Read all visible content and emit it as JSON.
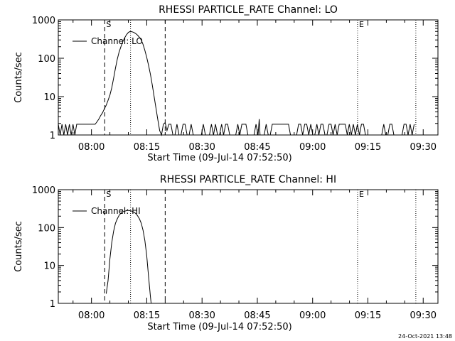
{
  "footer_stamp": "24-Oct-2021 13:48",
  "chart_data": [
    {
      "type": "line",
      "title": "RHESSI PARTICLE_RATE Channel: LO",
      "xlabel": "Start Time (09-Jul-14 07:52:50)",
      "ylabel": "Counts/sec",
      "yscale": "log",
      "ylim": [
        1,
        1000
      ],
      "y_ticks": [
        {
          "value": 1,
          "label": "1"
        },
        {
          "value": 10,
          "label": "10"
        },
        {
          "value": 100,
          "label": "100"
        },
        {
          "value": 1000,
          "label": "1000"
        }
      ],
      "x_ticks": [
        "08:00",
        "08:15",
        "08:30",
        "08:45",
        "09:00",
        "09:15",
        "09:30"
      ],
      "x_ticks_min": [
        7,
        22,
        37,
        52,
        67,
        82,
        97
      ],
      "xlim_min": [
        -2,
        101
      ],
      "legend": {
        "label": "Channel: LO",
        "position": "top-left"
      },
      "markers": [
        {
          "x_min": 10.6,
          "style": "dashed",
          "label": "S"
        },
        {
          "x_min": 17.6,
          "style": "dotted",
          "label": ""
        },
        {
          "x_min": 27.0,
          "style": "dashed",
          "label": ""
        },
        {
          "x_min": 79.2,
          "style": "dotted",
          "label": "E"
        },
        {
          "x_min": 95.0,
          "style": "dotted",
          "label": ""
        }
      ],
      "series": [
        {
          "name": "Channel: LO",
          "noise_range_min": [
            28,
            95
          ],
          "noise_low": 1.0,
          "noise_high": 1.9,
          "points": [
            [
              -2,
              1.9
            ],
            [
              -1.5,
              1.0
            ],
            [
              -1,
              1.9
            ],
            [
              -0.5,
              1.0
            ],
            [
              0,
              1.9
            ],
            [
              0.5,
              1.0
            ],
            [
              1,
              1.9
            ],
            [
              1.5,
              1.0
            ],
            [
              2,
              1.9
            ],
            [
              2.5,
              1.0
            ],
            [
              3,
              1.9
            ],
            [
              3.5,
              1.9
            ],
            [
              6,
              1.9
            ],
            [
              7,
              1.9
            ],
            [
              8,
              1.9
            ],
            [
              8.5,
              2.2
            ],
            [
              9,
              2.6
            ],
            [
              9.5,
              3.2
            ],
            [
              10,
              3.8
            ],
            [
              10.5,
              4.8
            ],
            [
              11,
              6
            ],
            [
              11.5,
              8
            ],
            [
              12,
              11
            ],
            [
              12.5,
              17
            ],
            [
              13,
              30
            ],
            [
              13.5,
              55
            ],
            [
              14,
              95
            ],
            [
              14.5,
              145
            ],
            [
              15,
              200
            ],
            [
              15.5,
              270
            ],
            [
              16,
              340
            ],
            [
              16.5,
              410
            ],
            [
              17,
              470
            ],
            [
              17.5,
              500
            ],
            [
              18,
              490
            ],
            [
              18.5,
              470
            ],
            [
              19,
              440
            ],
            [
              19.5,
              400
            ],
            [
              20,
              350
            ],
            [
              20.5,
              300
            ],
            [
              21,
              230
            ],
            [
              21.5,
              160
            ],
            [
              22,
              105
            ],
            [
              22.5,
              65
            ],
            [
              23,
              38
            ],
            [
              23.5,
              20
            ],
            [
              24,
              10
            ],
            [
              24.5,
              5
            ],
            [
              25,
              2.5
            ],
            [
              25.5,
              1.3
            ],
            [
              26,
              1.0
            ],
            [
              26.5,
              1.9
            ],
            [
              27,
              2.1
            ],
            [
              27.5,
              1.3
            ]
          ],
          "spikes": [
            [
              52.5,
              2.6
            ]
          ]
        }
      ]
    },
    {
      "type": "line",
      "title": "RHESSI PARTICLE_RATE Channel: HI",
      "xlabel": "Start Time (09-Jul-14 07:52:50)",
      "ylabel": "Counts/sec",
      "yscale": "log",
      "ylim": [
        1,
        1000
      ],
      "y_ticks": [
        {
          "value": 1,
          "label": "1"
        },
        {
          "value": 10,
          "label": "10"
        },
        {
          "value": 100,
          "label": "100"
        },
        {
          "value": 1000,
          "label": "1000"
        }
      ],
      "x_ticks": [
        "08:00",
        "08:15",
        "08:30",
        "08:45",
        "09:00",
        "09:15",
        "09:30"
      ],
      "x_ticks_min": [
        7,
        22,
        37,
        52,
        67,
        82,
        97
      ],
      "xlim_min": [
        -2,
        101
      ],
      "legend": {
        "label": "Channel: HI",
        "position": "top-left"
      },
      "markers": [
        {
          "x_min": 10.6,
          "style": "dashed",
          "label": "S"
        },
        {
          "x_min": 17.6,
          "style": "dotted",
          "label": ""
        },
        {
          "x_min": 27.0,
          "style": "dashed",
          "label": ""
        },
        {
          "x_min": 79.2,
          "style": "dotted",
          "label": "E"
        },
        {
          "x_min": 95.0,
          "style": "dotted",
          "label": ""
        }
      ],
      "series": [
        {
          "name": "Channel: HI",
          "points": [
            [
              11.0,
              1.8
            ],
            [
              11.5,
              4
            ],
            [
              12,
              15
            ],
            [
              12.5,
              40
            ],
            [
              13,
              80
            ],
            [
              13.5,
              130
            ],
            [
              14,
              170
            ],
            [
              14.5,
              210
            ],
            [
              15,
              240
            ],
            [
              15.5,
              260
            ],
            [
              16,
              270
            ],
            [
              16.5,
              280
            ],
            [
              17,
              285
            ],
            [
              17.5,
              280
            ],
            [
              18,
              270
            ],
            [
              18.5,
              255
            ],
            [
              19,
              235
            ],
            [
              19.5,
              205
            ],
            [
              20,
              170
            ],
            [
              20.5,
              130
            ],
            [
              21,
              85
            ],
            [
              21.5,
              45
            ],
            [
              22,
              18
            ],
            [
              22.5,
              5
            ],
            [
              23,
              1.5
            ],
            [
              23.2,
              1.0
            ]
          ]
        }
      ]
    }
  ]
}
